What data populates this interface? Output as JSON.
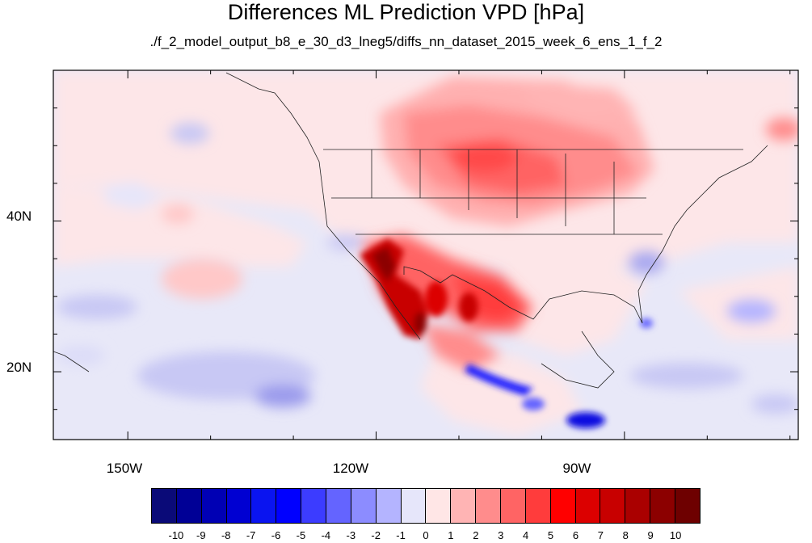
{
  "title": "Differences ML Prediction VPD [hPa]",
  "subtitle": "./f_2_model_output_b8_e_30_d3_lneg5/diffs_nn_dataset_2015_week_6_ens_1_f_2",
  "map": {
    "projection": "lat-lon",
    "lon_range": [
      -159,
      -69
    ],
    "lat_range": [
      11,
      60
    ],
    "lat_ticks": [
      {
        "value": 40,
        "label": "40N"
      },
      {
        "value": 20,
        "label": "20N"
      }
    ],
    "lon_ticks": [
      {
        "value": -150,
        "label": "150W"
      },
      {
        "value": -120,
        "label": "120W"
      },
      {
        "value": -90,
        "label": "90W"
      }
    ]
  },
  "legend": {
    "labels": [
      "-10",
      "-9",
      "-8",
      "-7",
      "-6",
      "-5",
      "-4",
      "-3",
      "-2",
      "-1",
      "0",
      "1",
      "2",
      "3",
      "4",
      "5",
      "6",
      "7",
      "8",
      "9",
      "10"
    ],
    "colors": [
      "#0a0a78",
      "#000096",
      "#0000b4",
      "#0000d2",
      "#0a14f0",
      "#0000ff",
      "#3c3cff",
      "#6464ff",
      "#8c8cff",
      "#b4b4ff",
      "#e6e6fa",
      "#ffe6e6",
      "#ffb4b4",
      "#ff8c8c",
      "#ff6464",
      "#ff3c3c",
      "#ff0000",
      "#dc0000",
      "#c80000",
      "#aa0000",
      "#8c0000",
      "#6e0000"
    ]
  }
}
